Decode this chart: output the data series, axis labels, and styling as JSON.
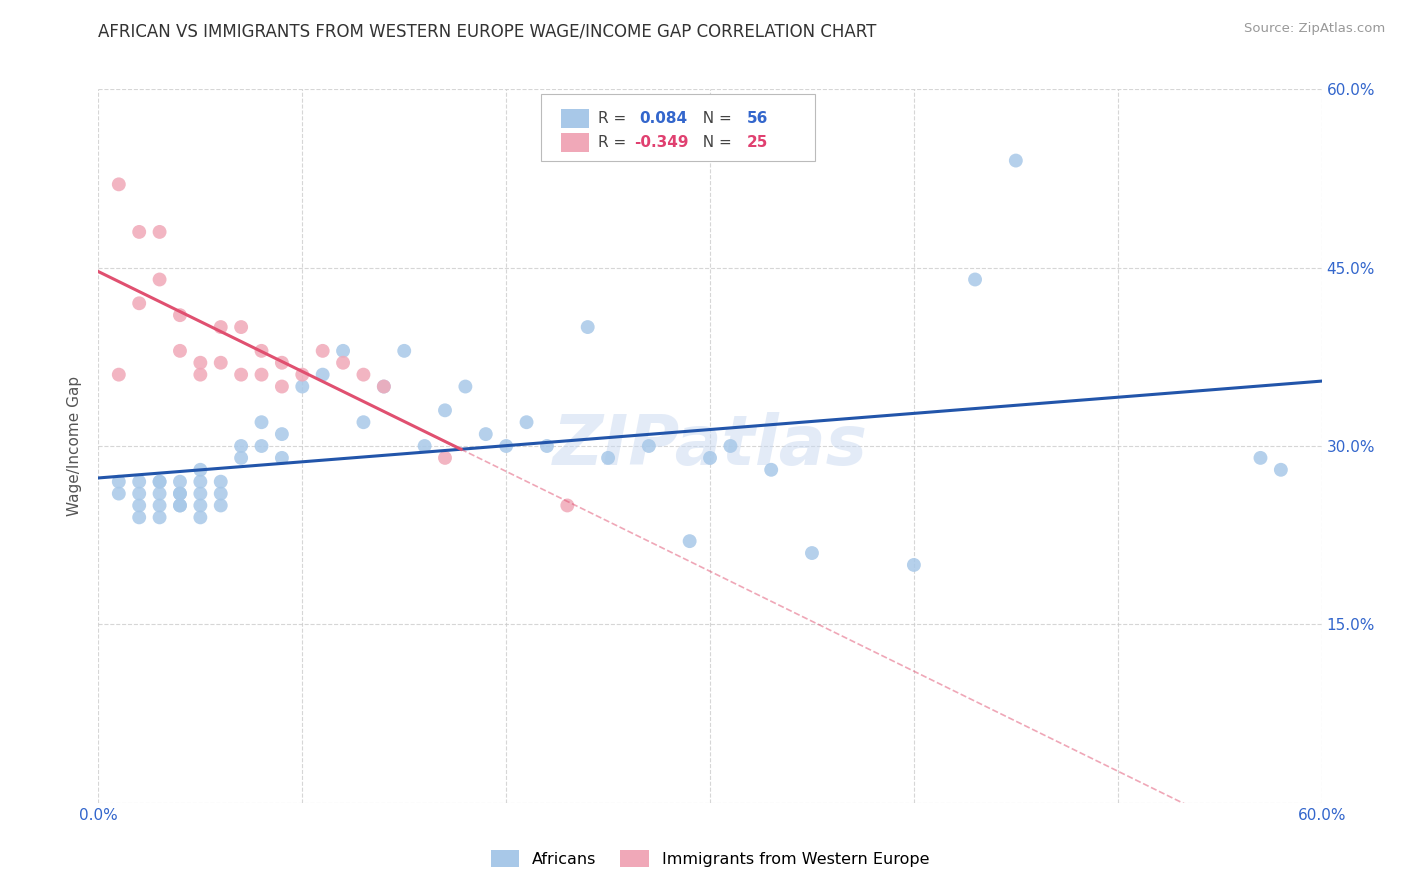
{
  "title": "AFRICAN VS IMMIGRANTS FROM WESTERN EUROPE WAGE/INCOME GAP CORRELATION CHART",
  "source": "Source: ZipAtlas.com",
  "ylabel": "Wage/Income Gap",
  "watermark": "ZIPatlas",
  "xlim": [
    0.0,
    0.6
  ],
  "ylim": [
    0.0,
    0.6
  ],
  "color_africans": "#A8C8E8",
  "color_western": "#F0A8B8",
  "line_color_africans": "#2255AA",
  "line_color_western": "#E05070",
  "background_color": "#FFFFFF",
  "grid_color": "#CCCCCC",
  "africans_x": [
    0.01,
    0.01,
    0.02,
    0.02,
    0.02,
    0.02,
    0.03,
    0.03,
    0.03,
    0.03,
    0.03,
    0.04,
    0.04,
    0.04,
    0.04,
    0.04,
    0.05,
    0.05,
    0.05,
    0.05,
    0.05,
    0.06,
    0.06,
    0.06,
    0.07,
    0.07,
    0.08,
    0.08,
    0.09,
    0.09,
    0.1,
    0.11,
    0.12,
    0.13,
    0.14,
    0.15,
    0.16,
    0.17,
    0.18,
    0.19,
    0.2,
    0.21,
    0.22,
    0.24,
    0.25,
    0.27,
    0.29,
    0.3,
    0.31,
    0.33,
    0.35,
    0.4,
    0.43,
    0.45,
    0.57,
    0.58
  ],
  "africans_y": [
    0.26,
    0.27,
    0.24,
    0.25,
    0.26,
    0.27,
    0.24,
    0.25,
    0.26,
    0.27,
    0.27,
    0.25,
    0.25,
    0.26,
    0.26,
    0.27,
    0.24,
    0.25,
    0.26,
    0.27,
    0.28,
    0.25,
    0.26,
    0.27,
    0.29,
    0.3,
    0.3,
    0.32,
    0.29,
    0.31,
    0.35,
    0.36,
    0.38,
    0.32,
    0.35,
    0.38,
    0.3,
    0.33,
    0.35,
    0.31,
    0.3,
    0.32,
    0.3,
    0.4,
    0.29,
    0.3,
    0.22,
    0.29,
    0.3,
    0.28,
    0.21,
    0.2,
    0.44,
    0.54,
    0.29,
    0.28
  ],
  "western_x": [
    0.01,
    0.01,
    0.02,
    0.02,
    0.03,
    0.03,
    0.04,
    0.04,
    0.05,
    0.05,
    0.06,
    0.06,
    0.07,
    0.07,
    0.08,
    0.08,
    0.09,
    0.09,
    0.1,
    0.11,
    0.12,
    0.13,
    0.14,
    0.17,
    0.23
  ],
  "western_y": [
    0.36,
    0.52,
    0.42,
    0.48,
    0.44,
    0.48,
    0.38,
    0.41,
    0.36,
    0.37,
    0.37,
    0.4,
    0.36,
    0.4,
    0.38,
    0.36,
    0.35,
    0.37,
    0.36,
    0.38,
    0.37,
    0.36,
    0.35,
    0.29,
    0.25
  ]
}
